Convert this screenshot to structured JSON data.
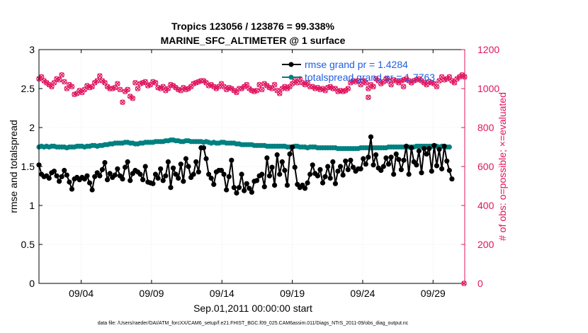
{
  "chart_data": {
    "type": "line",
    "title_line1": "Tropics 123056 / 123876 = 99.338%",
    "title_line2": "MARINE_SFC_ALTIMETER @ 1 surface",
    "xlabel": "Sep.01,2011 00:00:00 start",
    "ylabel_left": "rmse and totalspread",
    "ylabel_right": "# of obs: o=possible; ×=evaluated",
    "footer": "data file: /Users/raeder/DAI/ATM_forcXX/CAM6_setup/f.e21.FHIST_BGC.f09_025.CAM6assim.011/Diags_NTrS_2011-09/obs_diag_output.nc",
    "x_ticks": [
      "09/04",
      "09/09",
      "09/14",
      "09/19",
      "09/24",
      "09/29"
    ],
    "x_tick_days": [
      4,
      9,
      14,
      19,
      24,
      29
    ],
    "xlim_days": [
      1.0,
      31.25
    ],
    "ylim_left": [
      0,
      3
    ],
    "yticks_left": [
      "0",
      "0.5",
      "1",
      "1.5",
      "2",
      "2.5",
      "3"
    ],
    "ylim_right": [
      0,
      1200
    ],
    "yticks_right": [
      "0",
      "200",
      "400",
      "600",
      "800",
      "1000",
      "1200"
    ],
    "grid": true,
    "legend": [
      {
        "label": "rmse grand pr = 1.4284",
        "color": "#000000"
      },
      {
        "label": "totalspread grand pr = 1.7763",
        "color": "#008080"
      }
    ],
    "colors": {
      "rmse": "#000000",
      "spread": "#008080",
      "obs": "#e0145e",
      "legend_text": "#1f5fe0"
    },
    "series": [
      {
        "name": "rmse",
        "axis": "left",
        "values": [
          1.52,
          1.4,
          1.37,
          1.38,
          1.35,
          1.42,
          1.44,
          1.38,
          1.31,
          1.37,
          1.45,
          1.39,
          1.3,
          1.21,
          1.34,
          1.36,
          1.33,
          1.36,
          1.34,
          1.38,
          1.29,
          1.2,
          1.37,
          1.42,
          1.38,
          1.46,
          1.55,
          1.33,
          1.41,
          1.36,
          1.39,
          1.47,
          1.38,
          1.34,
          1.49,
          1.56,
          1.32,
          1.41,
          1.45,
          1.43,
          1.4,
          1.33,
          1.5,
          1.3,
          1.29,
          1.28,
          1.4,
          1.35,
          1.47,
          1.32,
          1.38,
          1.56,
          1.23,
          1.48,
          1.4,
          1.35,
          1.53,
          1.31,
          1.6,
          1.5,
          1.36,
          1.4,
          1.56,
          1.43,
          1.74,
          1.74,
          1.6,
          1.4,
          1.35,
          1.27,
          1.43,
          1.45,
          1.45,
          1.4,
          1.2,
          1.37,
          1.58,
          1.23,
          1.16,
          1.23,
          1.4,
          1.19,
          1.28,
          1.22,
          1.17,
          1.31,
          1.32,
          1.38,
          1.4,
          1.24,
          1.61,
          1.38,
          1.49,
          1.26,
          1.65,
          1.4,
          1.56,
          1.45,
          1.26,
          1.66,
          1.75,
          1.49,
          1.27,
          1.23,
          1.26,
          1.22,
          1.29,
          1.4,
          1.52,
          1.41,
          1.38,
          1.46,
          1.29,
          1.37,
          1.5,
          1.35,
          1.56,
          1.28,
          1.44,
          1.5,
          1.39,
          1.57,
          1.46,
          1.58,
          1.49,
          1.44,
          1.47,
          1.47,
          1.6,
          1.53,
          1.62,
          1.88,
          1.52,
          1.65,
          1.48,
          1.45,
          1.5,
          1.61,
          1.53,
          1.62,
          1.4,
          1.66,
          1.59,
          1.46,
          1.58,
          1.76,
          1.4,
          1.74,
          1.56,
          1.52,
          1.7,
          1.42,
          1.73,
          1.66,
          1.73,
          1.44,
          1.77,
          1.51,
          1.72,
          1.47,
          1.76,
          1.57,
          1.45,
          1.34
        ],
        "x_start_day": 1.0,
        "x_step_days": 0.18
      },
      {
        "name": "totalspread",
        "axis": "left",
        "values": [
          1.75,
          1.76,
          1.75,
          1.76,
          1.75,
          1.76,
          1.76,
          1.75,
          1.75,
          1.75,
          1.75,
          1.74,
          1.75,
          1.75,
          1.75,
          1.76,
          1.76,
          1.76,
          1.75,
          1.76,
          1.76,
          1.77,
          1.77,
          1.76,
          1.77,
          1.77,
          1.78,
          1.78,
          1.79,
          1.79,
          1.8,
          1.8,
          1.8,
          1.8,
          1.81,
          1.81,
          1.8,
          1.8,
          1.79,
          1.79,
          1.8,
          1.8,
          1.81,
          1.81,
          1.81,
          1.81,
          1.82,
          1.82,
          1.82,
          1.82,
          1.83,
          1.83,
          1.84,
          1.84,
          1.83,
          1.83,
          1.82,
          1.82,
          1.83,
          1.83,
          1.82,
          1.82,
          1.82,
          1.82,
          1.82,
          1.81,
          1.82,
          1.81,
          1.8,
          1.81,
          1.8,
          1.8,
          1.81,
          1.81,
          1.8,
          1.8,
          1.8,
          1.8,
          1.79,
          1.79,
          1.78,
          1.78,
          1.78,
          1.78,
          1.78,
          1.77,
          1.77,
          1.77,
          1.77,
          1.77,
          1.76,
          1.76,
          1.76,
          1.76,
          1.76,
          1.76,
          1.76,
          1.76,
          1.75,
          1.75,
          1.75,
          1.76,
          1.76,
          1.75,
          1.75,
          1.75,
          1.74,
          1.75,
          1.75,
          1.75,
          1.74,
          1.74,
          1.74,
          1.74,
          1.74,
          1.74,
          1.74,
          1.74,
          1.73,
          1.73,
          1.73,
          1.73,
          1.73,
          1.73,
          1.73,
          1.73,
          1.73,
          1.74,
          1.74,
          1.74,
          1.74,
          1.74,
          1.74,
          1.74,
          1.74,
          1.74,
          1.74,
          1.74,
          1.75,
          1.75,
          1.75,
          1.75,
          1.75,
          1.75,
          1.75,
          1.75,
          1.75,
          1.75,
          1.75,
          1.76,
          1.76,
          1.76,
          1.76,
          1.76,
          1.76,
          1.76,
          1.76,
          1.76,
          1.75,
          1.76,
          1.75,
          1.75,
          1.75
        ],
        "x_start_day": 1.0,
        "x_step_days": 0.18
      },
      {
        "name": "obs possible / evaluated",
        "axis": "right",
        "values": [
          1050,
          1060,
          1040,
          1030,
          1020,
          1010,
          1030,
          1050,
          1045,
          1070,
          1035,
          1000,
          1020,
          1010,
          970,
          975,
          990,
          980,
          995,
          1015,
          1005,
          1010,
          1030,
          1040,
          1065,
          1040,
          1030,
          1010,
          1000,
          1000,
          1005,
          1025,
          995,
          930,
          985,
          995,
          960,
          950,
          1030,
          1000,
          1025,
          1030,
          1035,
          1015,
          1020,
          1035,
          1030,
          1005,
          1000,
          1010,
          990,
          1000,
          1020,
          1015,
          1005,
          995,
          990,
          1005,
          995,
          1000,
          1010,
          1025,
          1030,
          1035,
          1040,
          1040,
          1030,
          1015,
          1020,
          1010,
          1000,
          1010,
          1025,
          1010,
          995,
          1005,
          1000,
          990,
          980,
          1000,
          1000,
          1010,
          1020,
          1000,
          990,
          985,
          990,
          1020,
          995,
          1025,
          1015,
          1005,
          1000,
          1020,
          990,
          975,
          1000,
          1010,
          1000,
          1010,
          1025,
          1040,
          1030,
          1050,
          1030,
          1020,
          1030,
          1010,
          1010,
          1000,
          1005,
          995,
          1000,
          990,
          1005,
          1010,
          1000,
          1000,
          985,
          990,
          985,
          990,
          1000,
          1030,
          1040,
          1035,
          1040,
          1020,
          1040,
          1030,
          1000,
          1020,
          1010,
          1050,
          1040,
          1025,
          1035,
          1050,
          1040,
          1020,
          1045,
          1040,
          1030,
          1040,
          1045,
          1050,
          1040,
          1030,
          1040,
          1045,
          1050,
          1040,
          1030,
          1020,
          1035,
          1030,
          1025,
          1010,
          1040,
          1060,
          1045,
          1050,
          1060,
          1040,
          1030,
          1050,
          1060,
          1070,
          1060,
          1030,
          1050
        ],
        "x_start_day": 1.0,
        "x_step_days": 0.18,
        "outlier_points": [
          {
            "day": 26.9,
            "value": 1010
          },
          {
            "day": 24.4,
            "value": 955
          },
          {
            "day": 31.2,
            "value": 0
          }
        ]
      }
    ]
  }
}
